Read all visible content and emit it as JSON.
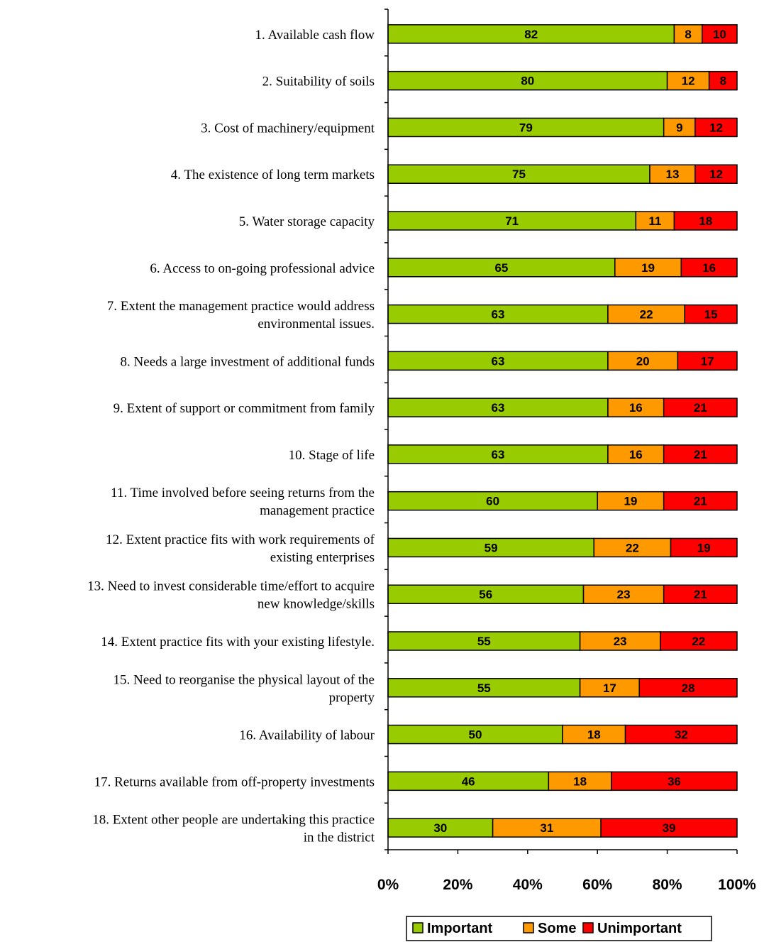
{
  "chart_data": {
    "type": "bar",
    "orientation": "horizontal",
    "stacked": "percent",
    "categories": [
      [
        "1. Available cash flow"
      ],
      [
        "2. Suitability of soils"
      ],
      [
        "3. Cost of machinery/equipment"
      ],
      [
        "4. The existence of long term markets"
      ],
      [
        "5. Water storage capacity"
      ],
      [
        "6. Access to on-going professional advice"
      ],
      [
        "7. Extent the management practice would address",
        "environmental issues."
      ],
      [
        "8. Needs a large investment of additional funds"
      ],
      [
        "9. Extent  of support or commitment from family"
      ],
      [
        "10. Stage of life"
      ],
      [
        "11. Time involved before seeing returns from the",
        "management practice"
      ],
      [
        "12. Extent practice fits with work requirements of",
        "existing enterprises"
      ],
      [
        "13. Need to invest considerable time/effort to acquire",
        "new knowledge/skills"
      ],
      [
        "14. Extent practice fits with your existing lifestyle."
      ],
      [
        "15. Need to reorganise the physical layout of the",
        "property"
      ],
      [
        "16. Availability of labour"
      ],
      [
        "17. Returns available from off-property investments"
      ],
      [
        "18. Extent other people are undertaking this practice",
        "in the district"
      ]
    ],
    "series": [
      {
        "name": "Important",
        "color": "#99cc00",
        "values": [
          82,
          80,
          79,
          75,
          71,
          65,
          63,
          63,
          63,
          63,
          60,
          59,
          56,
          55,
          55,
          50,
          46,
          30
        ]
      },
      {
        "name": "Some",
        "color": "#ff9900",
        "values": [
          8,
          12,
          9,
          13,
          11,
          19,
          22,
          20,
          16,
          16,
          19,
          22,
          23,
          23,
          17,
          18,
          18,
          31
        ]
      },
      {
        "name": "Unimportant",
        "color": "#ff0000",
        "values": [
          10,
          8,
          12,
          12,
          18,
          16,
          15,
          17,
          21,
          21,
          21,
          19,
          21,
          22,
          28,
          32,
          36,
          39
        ]
      }
    ],
    "x_ticks": [
      "0%",
      "20%",
      "40%",
      "60%",
      "80%",
      "100%"
    ],
    "xlim": [
      0,
      100
    ],
    "grid": false,
    "legend_position": "bottom"
  }
}
